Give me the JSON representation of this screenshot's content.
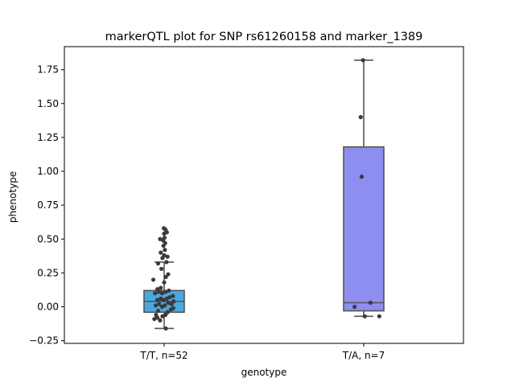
{
  "chart_data": {
    "type": "box",
    "title": "markerQTL plot for SNP rs61260158 and marker_1389",
    "xlabel": "genotype",
    "ylabel": "phenotype",
    "ylim": [
      -0.27,
      1.92
    ],
    "yticks": [
      -0.25,
      0.0,
      0.25,
      0.5,
      0.75,
      1.0,
      1.25,
      1.5,
      1.75
    ],
    "ytick_labels": [
      "−0.25",
      "0.00",
      "0.25",
      "0.50",
      "0.75",
      "1.00",
      "1.25",
      "1.50",
      "1.75"
    ],
    "grid": false,
    "legend": "none",
    "categories": [
      "T/T, n=52",
      "T/A, n=7"
    ],
    "boxes": [
      {
        "category": "T/T, n=52",
        "color": "#4aa8e0",
        "whisker_low": -0.16,
        "q1": -0.04,
        "median": 0.04,
        "q3": 0.12,
        "whisker_high": 0.33,
        "points": [
          {
            "x": -0.29,
            "y": -0.09
          },
          {
            "x": -0.24,
            "y": -0.06
          },
          {
            "x": -0.2,
            "y": -0.08
          },
          {
            "x": -0.18,
            "y": -0.03
          },
          {
            "x": -0.12,
            "y": -0.1
          },
          {
            "x": -0.05,
            "y": -0.07
          },
          {
            "x": 0.04,
            "y": -0.06
          },
          {
            "x": 0.1,
            "y": -0.04
          },
          {
            "x": 0.2,
            "y": -0.02
          },
          {
            "x": 0.27,
            "y": -0.01
          },
          {
            "x": -0.25,
            "y": 0.01
          },
          {
            "x": -0.15,
            "y": 0.02
          },
          {
            "x": -0.06,
            "y": 0.0
          },
          {
            "x": 0.02,
            "y": 0.01
          },
          {
            "x": 0.12,
            "y": 0.03
          },
          {
            "x": 0.22,
            "y": 0.02
          },
          {
            "x": 0.28,
            "y": 0.04
          },
          {
            "x": -0.2,
            "y": 0.05
          },
          {
            "x": -0.1,
            "y": 0.06
          },
          {
            "x": -0.02,
            "y": 0.05
          },
          {
            "x": 0.08,
            "y": 0.06
          },
          {
            "x": 0.16,
            "y": 0.07
          },
          {
            "x": 0.26,
            "y": 0.08
          },
          {
            "x": -0.27,
            "y": 0.1
          },
          {
            "x": -0.16,
            "y": 0.11
          },
          {
            "x": -0.06,
            "y": 0.1
          },
          {
            "x": 0.04,
            "y": 0.11
          },
          {
            "x": 0.14,
            "y": 0.12
          },
          {
            "x": -0.2,
            "y": 0.13
          },
          {
            "x": -0.1,
            "y": 0.14
          },
          {
            "x": 0.0,
            "y": 0.18
          },
          {
            "x": -0.32,
            "y": 0.2
          },
          {
            "x": 0.05,
            "y": 0.22
          },
          {
            "x": 0.12,
            "y": 0.24
          },
          {
            "x": -0.08,
            "y": 0.28
          },
          {
            "x": -0.18,
            "y": 0.32
          },
          {
            "x": 0.07,
            "y": 0.33
          },
          {
            "x": -0.05,
            "y": 0.36
          },
          {
            "x": 0.0,
            "y": 0.38
          },
          {
            "x": 0.1,
            "y": 0.37
          },
          {
            "x": -0.1,
            "y": 0.4
          },
          {
            "x": 0.02,
            "y": 0.42
          },
          {
            "x": -0.02,
            "y": 0.45
          },
          {
            "x": 0.03,
            "y": 0.47
          },
          {
            "x": -0.03,
            "y": 0.49
          },
          {
            "x": 0.01,
            "y": 0.51
          },
          {
            "x": -0.12,
            "y": 0.5
          },
          {
            "x": 0.0,
            "y": 0.54
          },
          {
            "x": 0.04,
            "y": 0.57
          },
          {
            "x": -0.01,
            "y": 0.58
          },
          {
            "x": 0.08,
            "y": 0.55
          },
          {
            "x": 0.05,
            "y": -0.16
          }
        ]
      },
      {
        "category": "T/A, n=7",
        "color": "#8e8ef0",
        "whisker_low": -0.07,
        "q1": -0.03,
        "median": 0.03,
        "q3": 1.18,
        "whisker_high": 1.82,
        "points": [
          {
            "x": -0.02,
            "y": 1.82
          },
          {
            "x": -0.09,
            "y": 1.4
          },
          {
            "x": -0.06,
            "y": 0.96
          },
          {
            "x": -0.27,
            "y": 0.0
          },
          {
            "x": 0.2,
            "y": 0.03
          },
          {
            "x": 0.03,
            "y": -0.07
          },
          {
            "x": 0.46,
            "y": -0.07
          }
        ]
      }
    ]
  }
}
